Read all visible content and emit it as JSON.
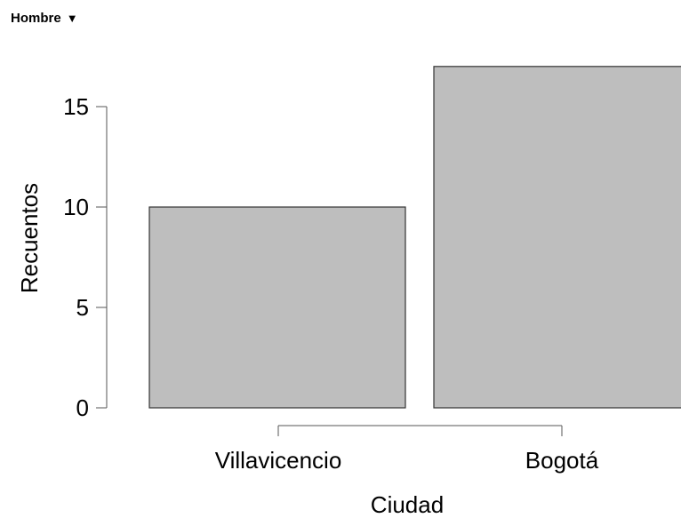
{
  "filter": {
    "label": "Hombre",
    "caret": "▼"
  },
  "chart_data": {
    "type": "bar",
    "categories": [
      "Villavicencio",
      "Bogotá"
    ],
    "values": [
      10,
      17
    ],
    "xlabel": "Ciudad",
    "ylabel": "Recuentos",
    "yticks": [
      0,
      5,
      10,
      15
    ],
    "ylim": [
      0,
      17
    ],
    "grid": false,
    "legend": "none",
    "bar_color": "#bebebe",
    "bar_stroke": "#333333"
  }
}
